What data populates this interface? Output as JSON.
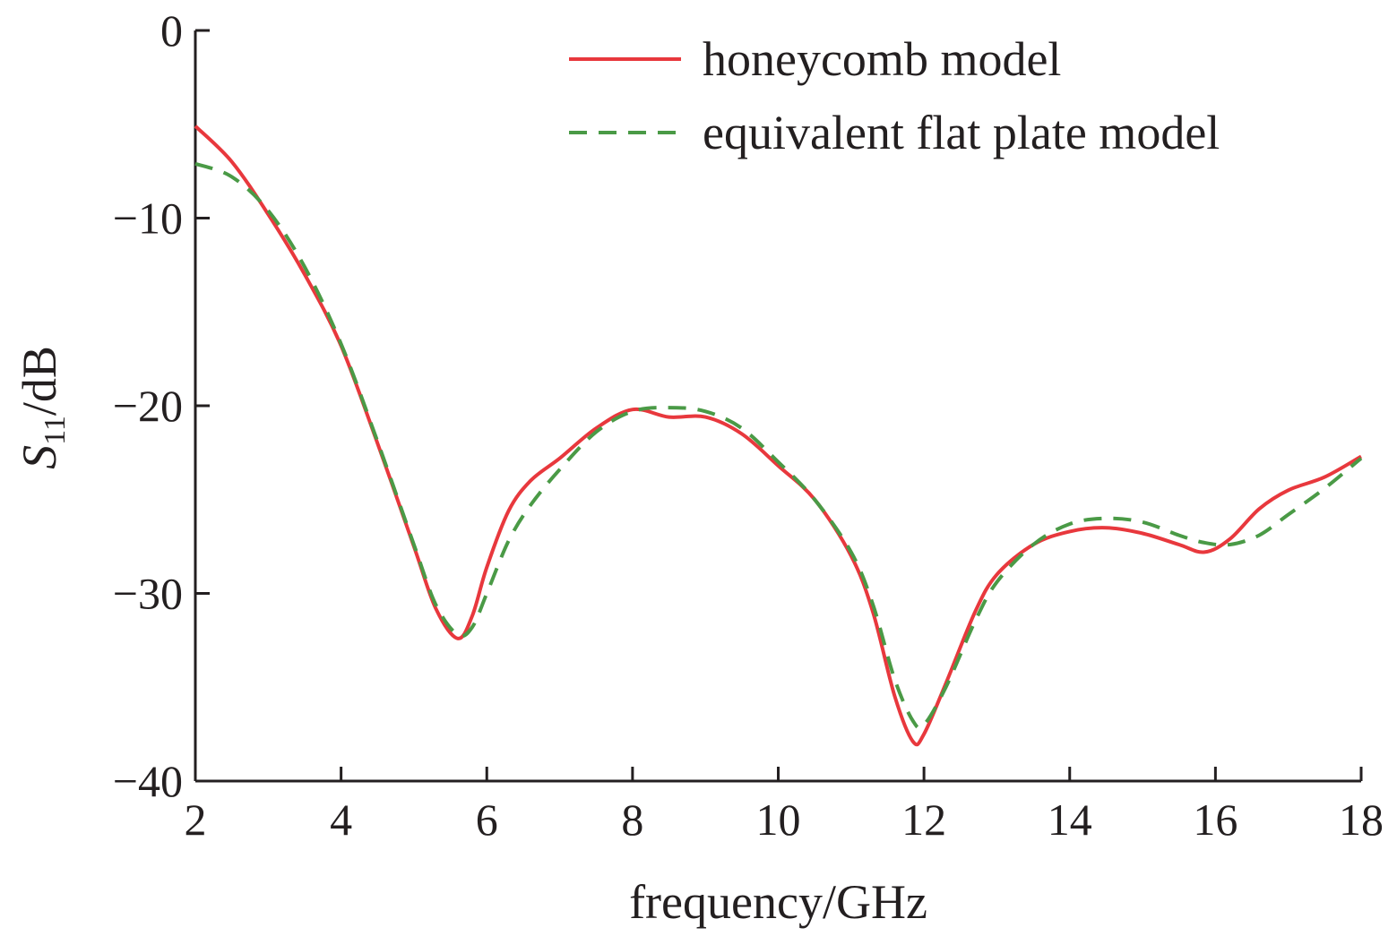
{
  "chart_data": {
    "type": "line",
    "xlabel": "frequency/GHz",
    "ylabel": {
      "main": "S",
      "sub": "11",
      "suffix": "/dB"
    },
    "xlim": [
      2,
      18
    ],
    "ylim": [
      -40,
      0
    ],
    "xticks": [
      2,
      4,
      6,
      8,
      10,
      12,
      14,
      16,
      18
    ],
    "xtick_labels": [
      "2",
      "4",
      "6",
      "8",
      "10",
      "12",
      "14",
      "16",
      "18"
    ],
    "yticks": [
      0,
      -10,
      -20,
      -30,
      -40
    ],
    "ytick_labels": [
      "0",
      "−10",
      "−20",
      "−30",
      "−40"
    ],
    "grid": false,
    "legend_position": "top-right",
    "series": [
      {
        "name": "honeycomb model",
        "color": "#e8383d",
        "style": "solid",
        "x": [
          2.0,
          2.5,
          3.0,
          3.5,
          4.0,
          4.5,
          5.0,
          5.3,
          5.6,
          5.8,
          6.0,
          6.3,
          6.6,
          7.0,
          7.5,
          8.0,
          8.5,
          9.0,
          9.5,
          10.0,
          10.5,
          11.0,
          11.3,
          11.6,
          11.85,
          12.0,
          12.3,
          12.7,
          13.0,
          13.5,
          14.0,
          14.5,
          15.0,
          15.5,
          15.85,
          16.2,
          16.6,
          17.0,
          17.5,
          18.0
        ],
        "y": [
          -5.1,
          -7.0,
          -9.8,
          -13.0,
          -16.8,
          -22.0,
          -27.5,
          -30.8,
          -32.4,
          -31.2,
          -28.6,
          -25.6,
          -24.0,
          -22.8,
          -21.2,
          -20.2,
          -20.6,
          -20.6,
          -21.5,
          -23.2,
          -25.0,
          -28.0,
          -31.0,
          -35.5,
          -37.9,
          -37.5,
          -34.8,
          -31.0,
          -29.0,
          -27.4,
          -26.7,
          -26.5,
          -26.8,
          -27.4,
          -27.8,
          -27.1,
          -25.5,
          -24.5,
          -23.8,
          -22.7
        ]
      },
      {
        "name": "equivalent flat plate model",
        "color": "#4a9a46",
        "style": "dashed",
        "x": [
          2.0,
          2.5,
          3.0,
          3.5,
          4.0,
          4.5,
          5.0,
          5.3,
          5.6,
          5.8,
          6.0,
          6.3,
          6.6,
          7.0,
          7.5,
          8.0,
          8.5,
          9.0,
          9.5,
          10.0,
          10.5,
          11.0,
          11.3,
          11.6,
          11.85,
          12.0,
          12.3,
          12.7,
          13.0,
          13.5,
          14.0,
          14.5,
          15.0,
          15.5,
          15.85,
          16.2,
          16.6,
          17.0,
          17.5,
          18.0
        ],
        "y": [
          -7.1,
          -7.8,
          -9.6,
          -12.6,
          -16.7,
          -21.9,
          -27.4,
          -30.6,
          -32.2,
          -31.8,
          -30.0,
          -27.2,
          -25.3,
          -23.4,
          -21.4,
          -20.3,
          -20.1,
          -20.3,
          -21.2,
          -23.0,
          -25.0,
          -27.8,
          -30.6,
          -34.6,
          -36.8,
          -37.0,
          -35.0,
          -31.5,
          -29.4,
          -27.4,
          -26.3,
          -26.0,
          -26.2,
          -26.9,
          -27.3,
          -27.4,
          -26.9,
          -25.8,
          -24.4,
          -22.8
        ]
      }
    ]
  }
}
